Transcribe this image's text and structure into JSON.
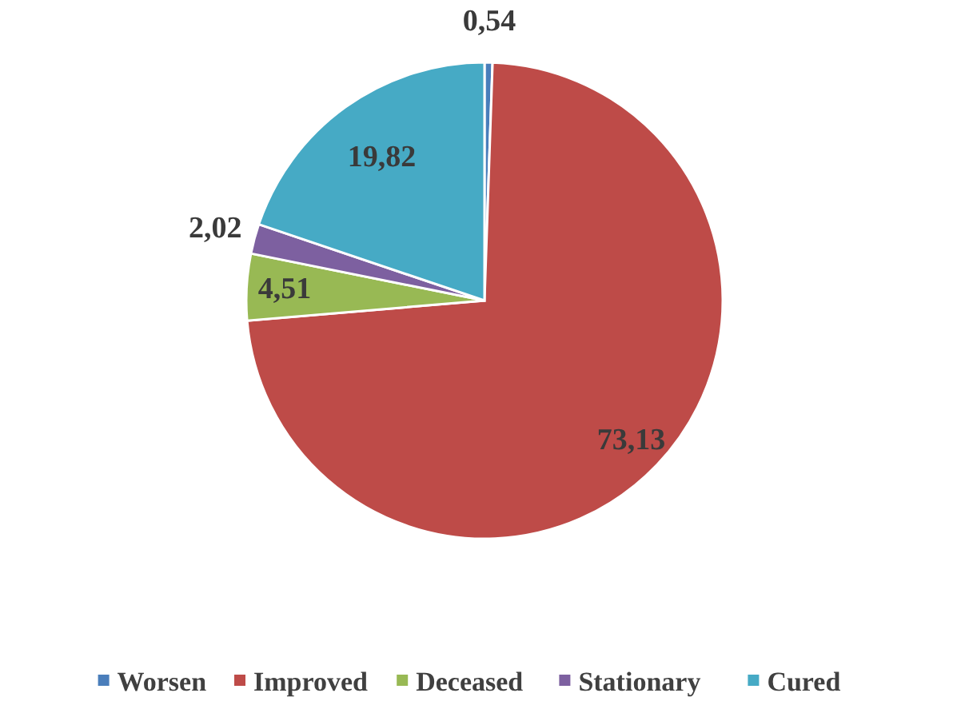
{
  "chart_data": {
    "type": "pie",
    "categories": [
      "Worsen",
      "Improved",
      "Deceased",
      "Stationary",
      "Cured"
    ],
    "values": [
      0.54,
      73.13,
      4.51,
      2.02,
      19.82
    ],
    "colors": [
      "#4a7ebb",
      "#be4b48",
      "#98b954",
      "#7d60a0",
      "#46aac5"
    ],
    "value_labels": [
      "0,54",
      "73,13",
      "4,51",
      "2,02",
      "19,82"
    ],
    "legend": "bottom"
  }
}
